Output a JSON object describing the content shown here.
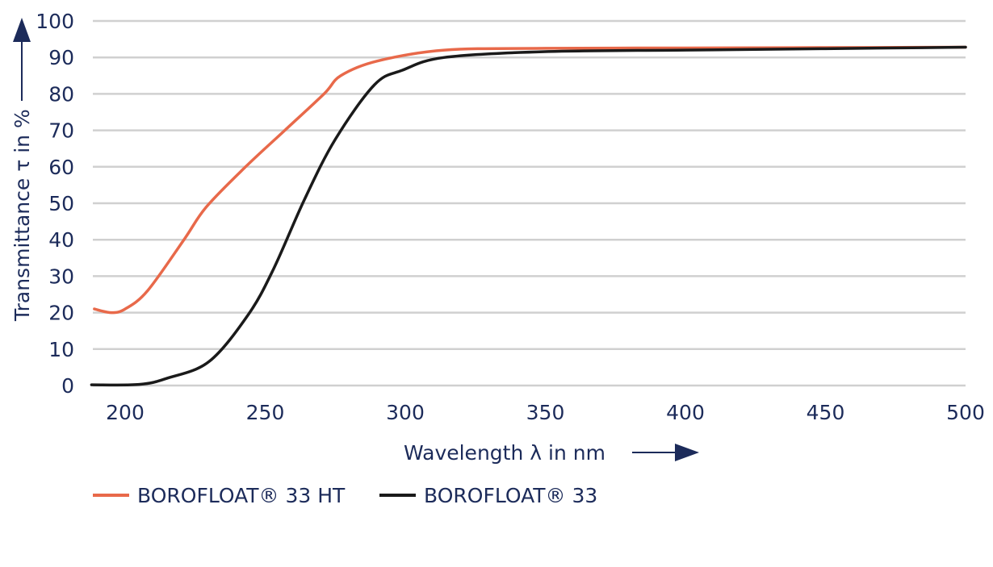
{
  "chart_data": {
    "type": "line",
    "title": "",
    "xlabel": "Wavelength λ in nm",
    "ylabel": "Transmittance τ in %",
    "xlim": [
      188,
      500
    ],
    "ylim": [
      0,
      100
    ],
    "xticks": [
      200,
      250,
      300,
      350,
      400,
      450,
      500
    ],
    "yticks": [
      0,
      10,
      20,
      30,
      40,
      50,
      60,
      70,
      80,
      90,
      100
    ],
    "grid": "horizontal",
    "legend_position": "bottom-left",
    "series": [
      {
        "name": "BOROFLOAT® 33 HT",
        "color": "#e8694a",
        "x": [
          189,
          195,
          200,
          208,
          221,
          229,
          243,
          257,
          271,
          277,
          290,
          314,
          350,
          400,
          450,
          500
        ],
        "y": [
          21,
          20,
          21,
          26,
          40,
          49,
          60,
          70,
          80,
          85,
          89,
          92,
          92.5,
          92.6,
          92.7,
          92.8
        ]
      },
      {
        "name": "BOROFLOAT® 33",
        "color": "#1a1a1a",
        "x": [
          188,
          205,
          215,
          230,
          244,
          253,
          264,
          275,
          289,
          299,
          314,
          350,
          400,
          450,
          500
        ],
        "y": [
          0.2,
          0.3,
          2,
          6.6,
          19.5,
          32,
          51,
          67.5,
          82.5,
          86.5,
          90,
          91.6,
          92,
          92.4,
          92.8
        ]
      }
    ]
  }
}
